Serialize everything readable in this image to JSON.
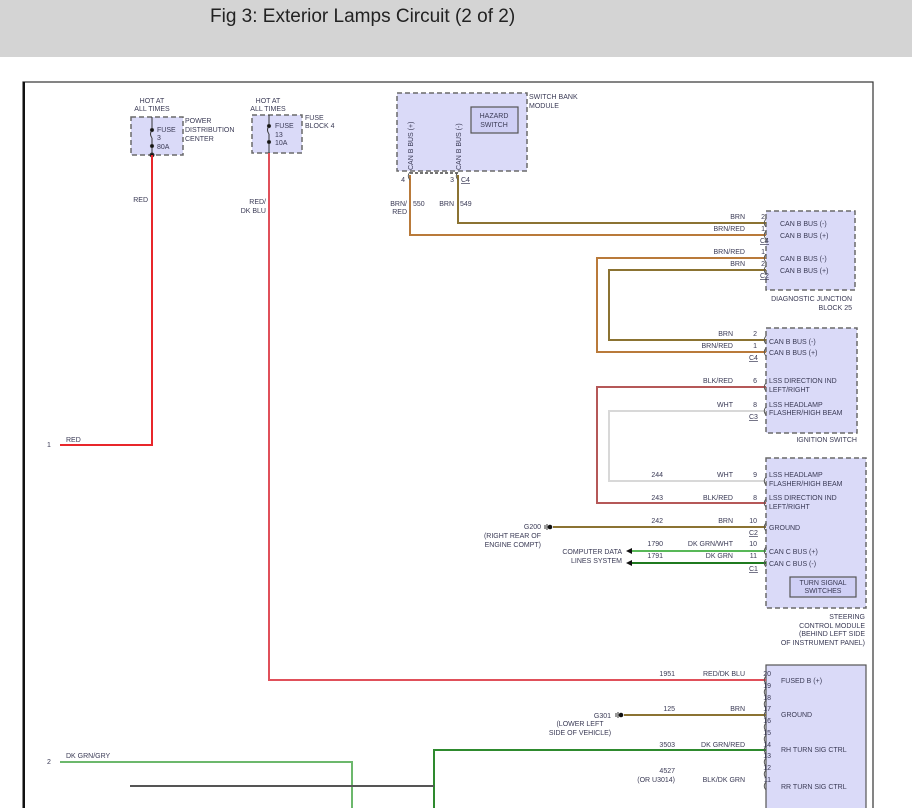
{
  "header": {
    "title": "Fig 3: Exterior Lamps Circuit (2 of 2)"
  },
  "colors": {
    "RED": "#e8262b",
    "RED_DK_BLU": "#e0505a",
    "BRN": "#8b7332",
    "BRN_RED": "#b97a3a",
    "BLK_RED": "#b55858",
    "WHT": "#d8d8d8",
    "DK_GRN_WHT": "#58b858",
    "DK_GRN": "#1f7a1f",
    "DK_GRN_GRY": "#6cb86c",
    "DK_GRN_RED": "#2e8a2e",
    "module_fill": "#dadaf8"
  },
  "pdc": {
    "hot": [
      "HOT AT",
      "ALL TIMES"
    ],
    "fuse": [
      "FUSE",
      "3",
      "80A"
    ],
    "name": [
      "POWER",
      "DISTRIBUTION",
      "CENTER"
    ],
    "wire_color": "RED"
  },
  "fuse_block": {
    "hot": [
      "HOT AT",
      "ALL TIMES"
    ],
    "fuse": [
      "FUSE",
      "13",
      "10A"
    ],
    "name": [
      "FUSE",
      "BLOCK 4"
    ],
    "wire_color": [
      "RED/",
      "DK BLU"
    ]
  },
  "left_connector": {
    "pin1": "1",
    "pin1_color": "RED",
    "pin2": "2",
    "pin2_color": "DK GRN/GRY"
  },
  "switch_bank": {
    "name": [
      "SWITCH BANK",
      "MODULE"
    ],
    "hazard": [
      "HAZARD",
      "SWITCH"
    ],
    "pin_labels": [
      "CAN B BUS (+)",
      "CAN B BUS (-)"
    ],
    "pins": [
      "4",
      "3"
    ],
    "connector": "C4",
    "wire_550": {
      "color": [
        "BRN/",
        "RED"
      ],
      "circuit": "550"
    },
    "wire_549": {
      "color": "BRN",
      "circuit": "549"
    }
  },
  "djb": {
    "name": [
      "DIAGNOSTIC JUNCTION",
      "BLOCK 25"
    ],
    "pins": [
      {
        "pin": "2",
        "color": "BRN",
        "label": "CAN B BUS (-)"
      },
      {
        "pin": "1",
        "color": "BRN/RED",
        "label": "CAN B BUS (+)"
      },
      {
        "pin": "1",
        "color": "BRN/RED",
        "label": "CAN B BUS (-)"
      },
      {
        "pin": "2",
        "color": "BRN",
        "label": "CAN B BUS (+)"
      }
    ],
    "connectors": [
      "C4",
      "C2"
    ]
  },
  "ignition": {
    "name": "IGNITION SWITCH",
    "pins": [
      {
        "pin": "2",
        "color": "BRN",
        "label": [
          "CAN B BUS (-)"
        ]
      },
      {
        "pin": "1",
        "color": "BRN/RED",
        "label": [
          "CAN B BUS (+)"
        ]
      },
      {
        "pin": "6",
        "color": "BLK/RED",
        "label": [
          "LSS DIRECTION IND",
          "LEFT/RIGHT"
        ]
      },
      {
        "pin": "8",
        "color": "WHT",
        "label": [
          "LSS HEADLAMP",
          "FLASHER/HIGH BEAM"
        ]
      }
    ],
    "connectors": [
      "C4",
      "C3"
    ]
  },
  "scm": {
    "name": [
      "STEERING",
      "CONTROL MODULE",
      "(BEHIND LEFT SIDE",
      "OF INSTRUMENT PANEL)"
    ],
    "turn_signal": [
      "TURN SIGNAL",
      "SWITCHES"
    ],
    "pins": [
      {
        "pin": "9",
        "circuit": "244",
        "color": "WHT",
        "label": [
          "LSS HEADLAMP",
          "FLASHER/HIGH BEAM"
        ]
      },
      {
        "pin": "8",
        "circuit": "243",
        "color": "BLK/RED",
        "label": [
          "LSS DIRECTION IND",
          "LEFT/RIGHT"
        ]
      },
      {
        "pin": "10",
        "circuit": "242",
        "color": "BRN",
        "label": [
          "GROUND"
        ]
      },
      {
        "pin": "10",
        "circuit": "1790",
        "color": "DK GRN/WHT",
        "label": [
          "CAN C BUS (+)"
        ]
      },
      {
        "pin": "11",
        "circuit": "1791",
        "color": "DK GRN",
        "label": [
          "CAN C BUS (-)"
        ]
      }
    ],
    "connectors": [
      "C2",
      "C1"
    ],
    "ground": {
      "id": "G200",
      "location": [
        "(RIGHT REAR OF",
        "ENGINE COMPT)"
      ]
    },
    "data_lines": [
      "COMPUTER DATA",
      "LINES SYSTEM"
    ]
  },
  "body_module": {
    "pins": [
      "20",
      "19",
      "18",
      "17",
      "16",
      "15",
      "14",
      "13",
      "12",
      "11"
    ],
    "labels": {
      "fused": "FUSED B (+)",
      "ground": "GROUND",
      "rh": "RH TURN SIG CTRL",
      "rr": "RR TURN SIG CTRL"
    },
    "wire_1951": {
      "circuit": "1951",
      "color": "RED/DK BLU"
    },
    "wire_125": {
      "circuit": "125",
      "color": "BRN"
    },
    "wire_3503": {
      "circuit": "3503",
      "color": "DK GRN/RED"
    },
    "wire_4527": {
      "circuit": [
        "4527",
        "(OR U3014)"
      ],
      "color": "BLK/DK GRN"
    },
    "ground": {
      "id": "G301",
      "location": [
        "(LOWER LEFT",
        "SIDE OF VEHICLE)"
      ]
    }
  }
}
